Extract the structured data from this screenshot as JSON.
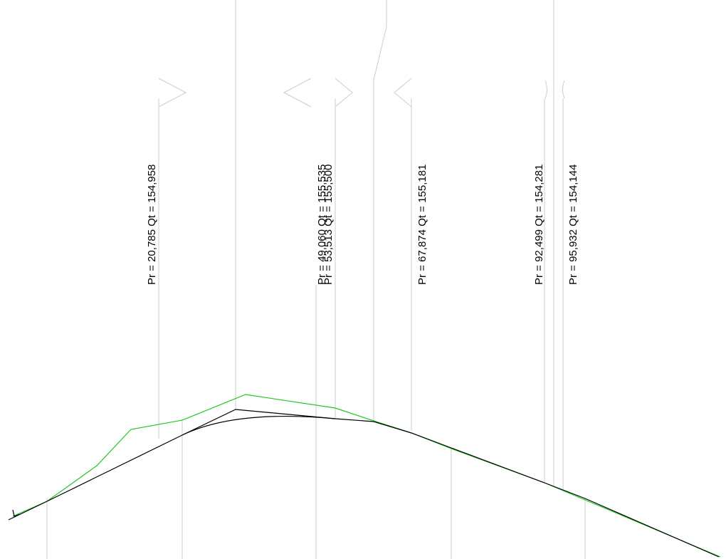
{
  "profile": {
    "colors": {
      "background": "#ffffff",
      "gridline": "#cccccc",
      "design_line": "#000000",
      "terrain_line": "#1ec81e",
      "text": "#000000"
    },
    "stations": [
      {
        "label": "Pr = 20,785  Qt = 154,958"
      },
      {
        "label": "Pr = 49,060  Qt = 155,535"
      },
      {
        "label": "Pr = 53,513  Qt = 155,500"
      },
      {
        "label": "Pr = 67,874  Qt = 155,181"
      },
      {
        "label": "Pr = 92,499  Qt = 154,281"
      },
      {
        "label": "Pr = 95,932  Qt = 154,144"
      }
    ]
  }
}
